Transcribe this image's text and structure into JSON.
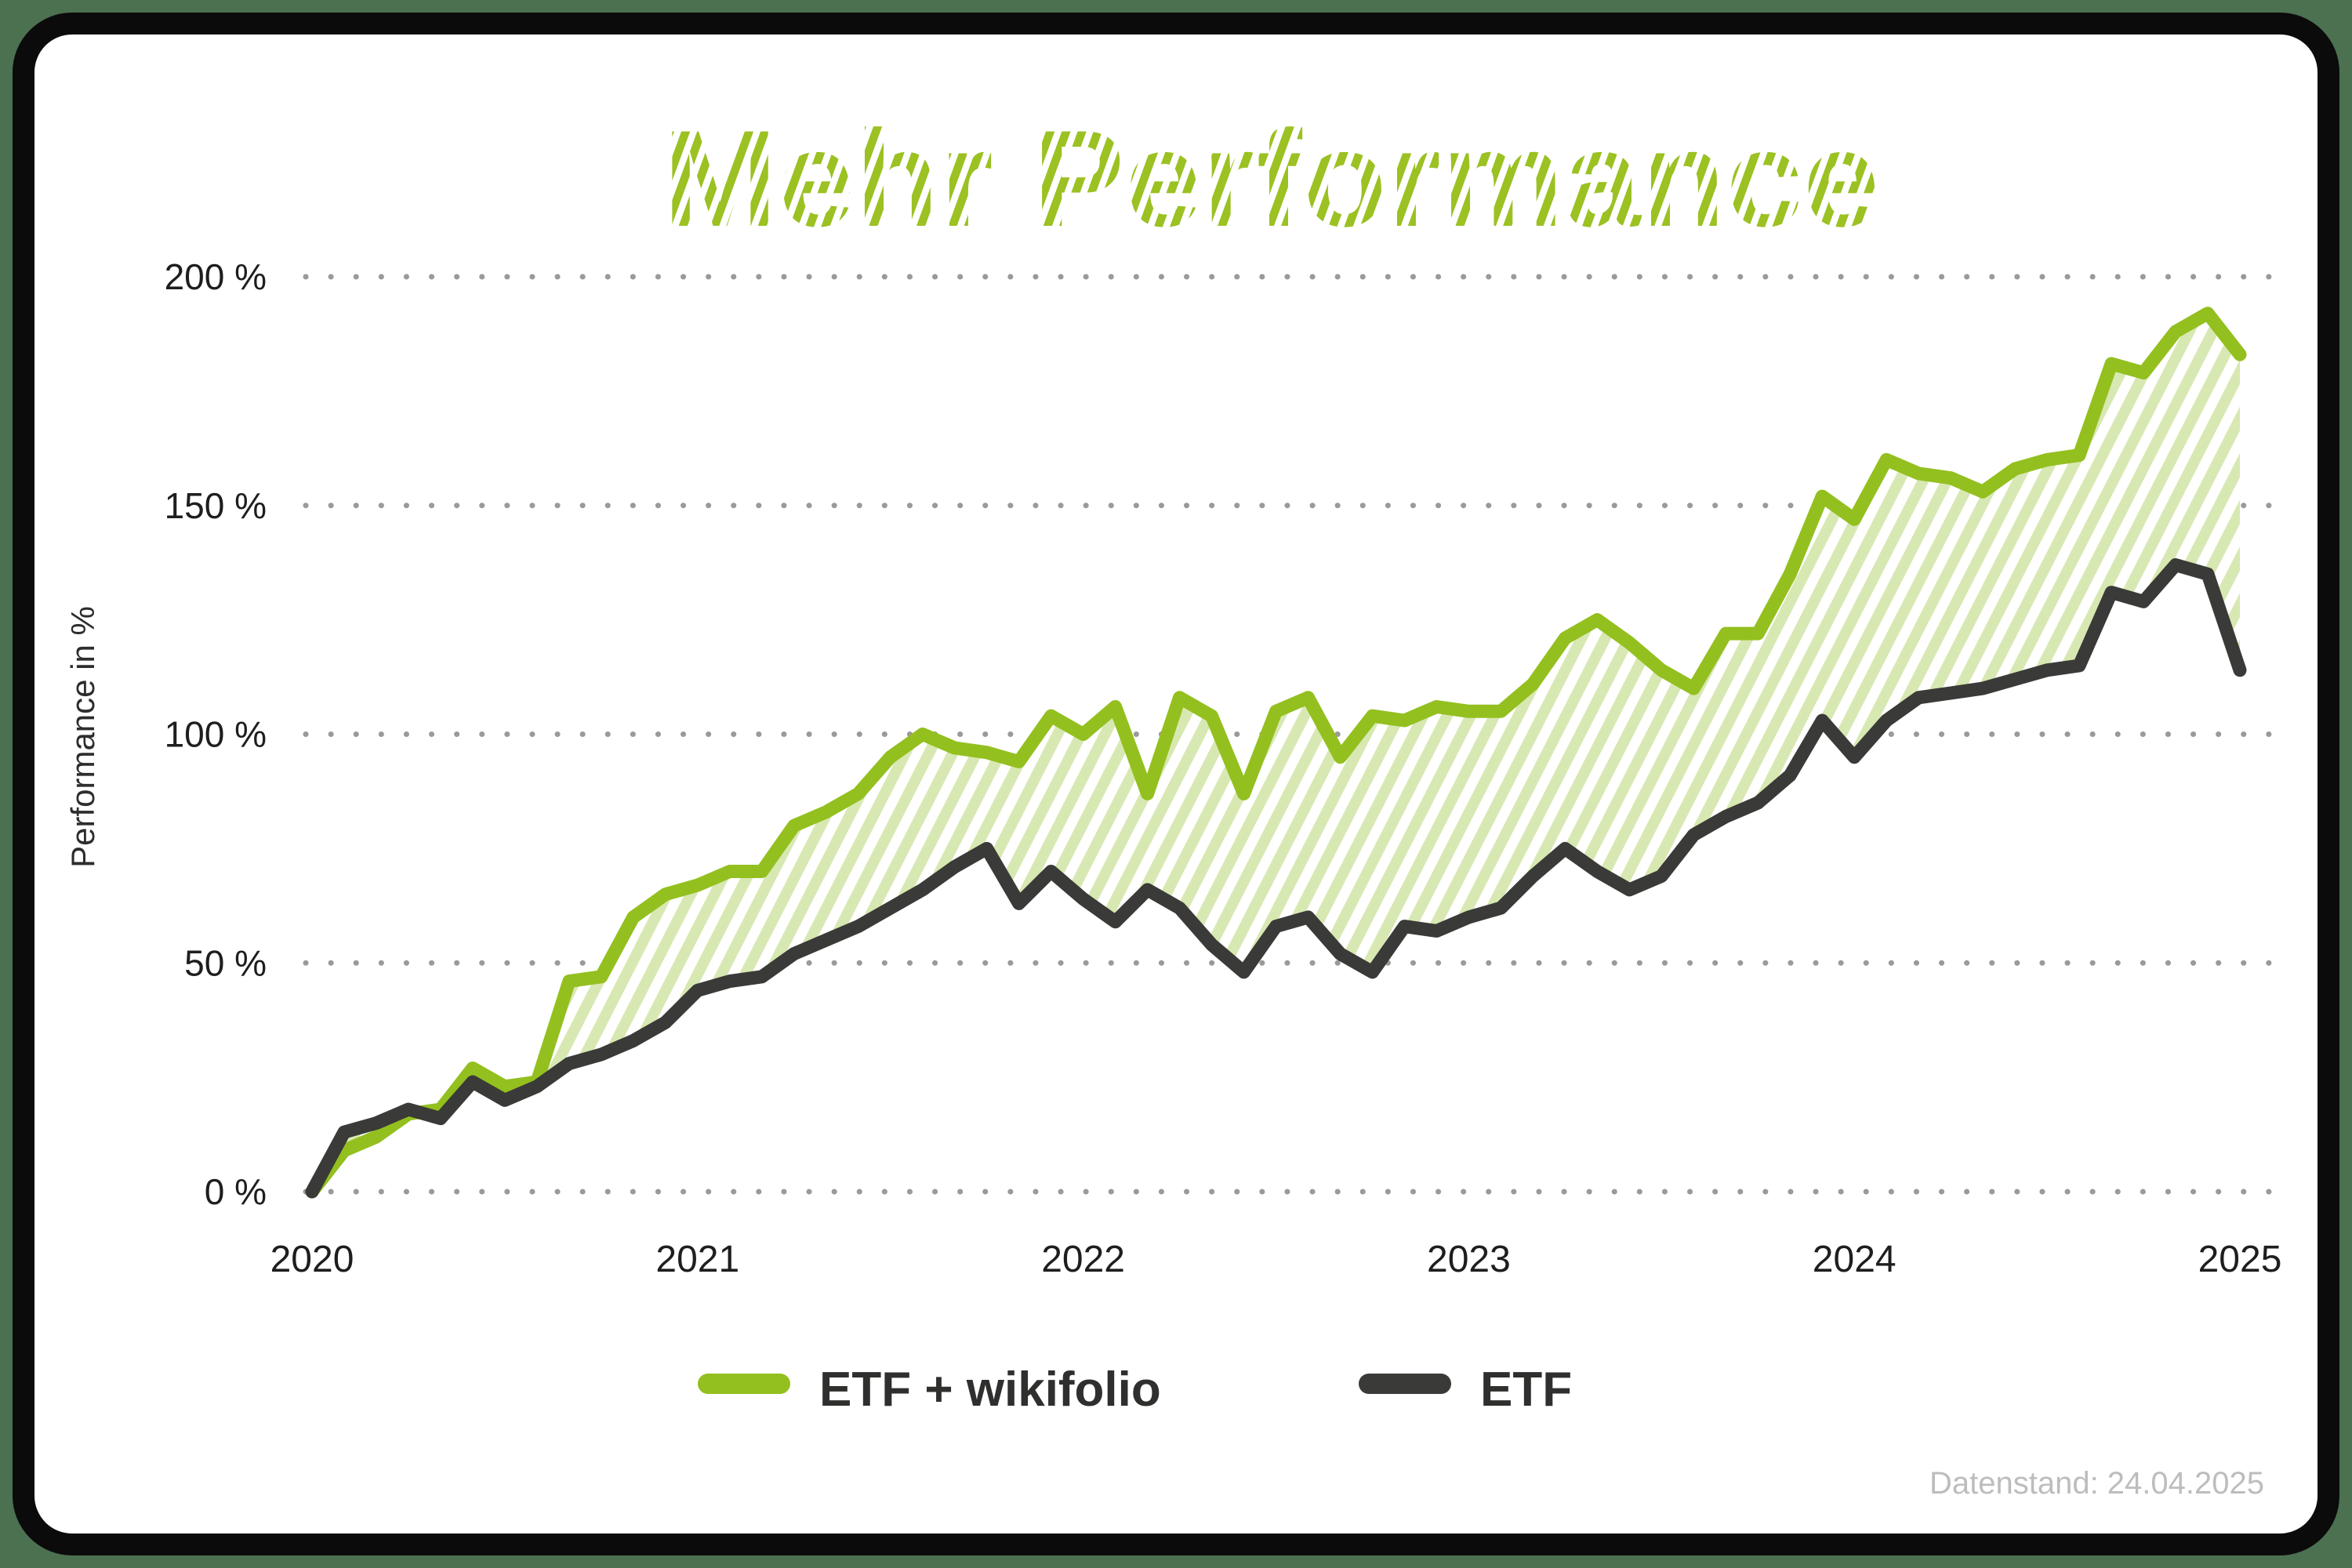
{
  "title": "Mehr Performance",
  "footnote": "Datenstand: 24.04.2025",
  "colors": {
    "background": "#4c7151",
    "card_fill": "#ffffff",
    "card_border": "#0b0b0b",
    "brand_green": "#93c01f",
    "hatch_green": "#d8e8b2",
    "dark_line": "#3a3a38",
    "grid_dot": "#9a9a9a",
    "tick_text": "#1e1e1e",
    "footnote_text": "#bdbdbd"
  },
  "y_axis": {
    "label": "Performance in %",
    "ticks": [
      {
        "value": 200,
        "label": "200 %"
      },
      {
        "value": 150,
        "label": "150 %"
      },
      {
        "value": 100,
        "label": "100 %"
      },
      {
        "value": 50,
        "label": "50 %"
      },
      {
        "value": 0,
        "label": "0 %"
      }
    ]
  },
  "x_axis": {
    "ticks": [
      "2020",
      "2021",
      "2022",
      "2023",
      "2024",
      "2025"
    ]
  },
  "legend": {
    "items": [
      {
        "label": "ETF + wikifolio",
        "color": "#93c01f"
      },
      {
        "label": "ETF",
        "color": "#3a3a38"
      }
    ]
  },
  "chart_data": {
    "type": "line",
    "title": "Mehr Performance",
    "ylabel": "Performance in %",
    "ylim": [
      0,
      200
    ],
    "grid": "dotted horizontal lines every 50 %",
    "legend_position": "bottom center",
    "x_unit": "monthly values, Jan 2020 – Jan 2025 (year ticks at each January)",
    "x_tick_years": [
      2020,
      2021,
      2022,
      2023,
      2024,
      2025
    ],
    "fill_between": "hatched light-green diagonal stripes between the two series",
    "series": [
      {
        "name": "ETF + wikifolio",
        "color": "#93c01f",
        "values": [
          0,
          9,
          12,
          17,
          18,
          27,
          23,
          24,
          46,
          47,
          60,
          65,
          67,
          70,
          70,
          80,
          83,
          87,
          95,
          100,
          97,
          96,
          94,
          104,
          100,
          106,
          87,
          108,
          104,
          87,
          105,
          108,
          95,
          104,
          103,
          106,
          105,
          105,
          111,
          121,
          125,
          120,
          114,
          110,
          122,
          122,
          135,
          152,
          147,
          160,
          157,
          156,
          153,
          158,
          160,
          161,
          181,
          179,
          188,
          192,
          183
        ]
      },
      {
        "name": "ETF",
        "color": "#3a3a38",
        "values": [
          0,
          13,
          15,
          18,
          16,
          24,
          20,
          23,
          28,
          30,
          33,
          37,
          44,
          46,
          47,
          52,
          55,
          58,
          62,
          66,
          71,
          75,
          63,
          70,
          64,
          59,
          66,
          62,
          54,
          48,
          58,
          60,
          52,
          48,
          58,
          57,
          60,
          62,
          69,
          75,
          70,
          66,
          69,
          78,
          82,
          85,
          91,
          103,
          95,
          103,
          108,
          109,
          110,
          112,
          114,
          115,
          131,
          129,
          137,
          135,
          114
        ]
      }
    ]
  }
}
